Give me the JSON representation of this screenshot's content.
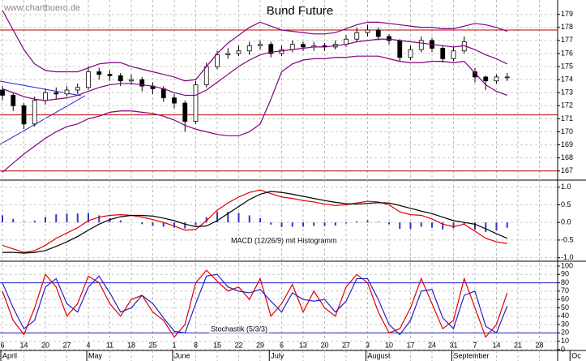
{
  "chart_data": {
    "title": "Bund Future",
    "watermark": "www.chartbuero.de",
    "categories": [
      "6",
      null,
      "14",
      null,
      "20",
      null,
      "27",
      null,
      "4",
      null,
      "11",
      null,
      "18",
      null,
      "25",
      null,
      "1",
      null,
      "8",
      null,
      "15",
      null,
      "22",
      null,
      "29",
      null,
      "6",
      null,
      "13",
      null,
      "20",
      null,
      "27",
      null,
      "3",
      null,
      "10",
      null,
      "17",
      null,
      "24",
      null,
      "31",
      null,
      "7",
      null,
      "14",
      null,
      "21",
      null,
      "28",
      null,
      null,
      null
    ],
    "months": [
      "April",
      null,
      null,
      null,
      null,
      null,
      null,
      null,
      "May",
      null,
      null,
      null,
      null,
      null,
      null,
      null,
      "June",
      null,
      null,
      null,
      null,
      null,
      null,
      null,
      null,
      "July",
      null,
      null,
      null,
      null,
      null,
      null,
      null,
      null,
      "August",
      null,
      null,
      null,
      null,
      null,
      null,
      null,
      "September",
      null,
      null,
      null,
      null,
      null,
      null,
      null,
      null,
      null,
      null,
      "Oc"
    ],
    "grid": true,
    "panels": [
      {
        "type": "candlestick",
        "open": [
          173.2,
          172.8,
          172.0,
          170.6,
          172.4,
          173.0,
          172.9,
          173.2,
          173.4,
          174.6,
          174.4,
          174.3,
          173.9,
          174.0,
          173.5,
          173.3,
          172.6,
          172.2,
          170.8,
          173.6,
          175.0,
          175.9,
          176.0,
          176.2,
          176.6,
          176.7,
          176.0,
          176.3,
          176.7,
          176.5,
          176.6,
          176.5,
          176.7,
          177.1,
          177.6,
          177.8,
          177.3,
          177.0,
          175.7,
          176.3,
          177.0,
          176.4,
          175.6,
          176.2,
          174.6,
          174.2,
          173.9,
          174.2,
          null,
          null,
          null,
          null,
          null,
          null
        ],
        "high": [
          173.5,
          173.0,
          172.2,
          172.7,
          173.3,
          173.4,
          173.5,
          173.7,
          175.0,
          174.9,
          174.7,
          174.5,
          174.4,
          174.2,
          173.8,
          173.5,
          172.9,
          172.4,
          173.9,
          175.3,
          176.2,
          176.4,
          176.6,
          176.9,
          177.0,
          176.9,
          176.6,
          177.0,
          176.9,
          176.9,
          176.8,
          177.0,
          177.4,
          178.0,
          178.2,
          178.0,
          177.5,
          177.1,
          176.6,
          177.3,
          177.2,
          176.6,
          176.5,
          177.3,
          174.9,
          174.3,
          174.4,
          174.5,
          null,
          null,
          null,
          null,
          null,
          null
        ],
        "low": [
          172.4,
          171.6,
          170.2,
          170.4,
          172.1,
          172.5,
          172.7,
          172.9,
          173.2,
          174.0,
          173.9,
          173.5,
          173.6,
          173.1,
          172.9,
          172.3,
          171.8,
          170.0,
          170.6,
          173.4,
          174.8,
          175.6,
          175.8,
          175.9,
          176.3,
          175.7,
          175.8,
          176.1,
          176.2,
          176.2,
          176.2,
          176.3,
          176.5,
          176.9,
          177.3,
          177.0,
          176.7,
          175.4,
          175.5,
          176.1,
          176.1,
          175.3,
          175.4,
          176.0,
          173.8,
          173.2,
          173.7,
          173.9,
          null,
          null,
          null,
          null,
          null,
          null
        ],
        "close": [
          172.8,
          172.0,
          170.6,
          172.4,
          173.0,
          172.9,
          173.2,
          173.4,
          174.6,
          174.4,
          174.3,
          173.9,
          174.0,
          173.5,
          173.3,
          172.6,
          172.2,
          170.8,
          173.6,
          175.0,
          175.9,
          176.0,
          176.2,
          176.6,
          176.7,
          176.0,
          176.3,
          176.7,
          176.5,
          176.6,
          176.5,
          176.7,
          177.1,
          177.6,
          177.8,
          177.3,
          177.0,
          175.7,
          176.3,
          177.0,
          176.4,
          175.6,
          176.2,
          176.9,
          174.2,
          173.9,
          174.2,
          174.2,
          null,
          null,
          null,
          null,
          null,
          null
        ],
        "series": [
          {
            "color": "#800080",
            "values": [
              179.3,
              177.8,
              176.3,
              175.2,
              174.7,
              174.6,
              174.6,
              174.6,
              174.9,
              175.2,
              175.3,
              175.3,
              175.0,
              174.8,
              174.6,
              174.4,
              174.2,
              173.9,
              174.0,
              175.0,
              176.0,
              176.8,
              177.4,
              178.0,
              178.4,
              178.1,
              177.8,
              177.7,
              177.6,
              177.5,
              177.5,
              177.6,
              177.9,
              178.2,
              178.4,
              178.4,
              178.3,
              178.2,
              178.1,
              178.0,
              178.0,
              177.9,
              177.9,
              178.1,
              178.3,
              178.2,
              178.0,
              177.7,
              null,
              null,
              null,
              null,
              null,
              null
            ]
          },
          {
            "color": "#800080",
            "values": [
              173.3,
              173.0,
              172.7,
              172.5,
              172.4,
              172.5,
              172.6,
              172.8,
              173.1,
              173.4,
              173.6,
              173.7,
              173.7,
              173.6,
              173.5,
              173.3,
              173.0,
              172.8,
              172.8,
              173.2,
              173.8,
              174.4,
              175.0,
              175.5,
              175.9,
              176.1,
              176.2,
              176.3,
              176.4,
              176.5,
              176.5,
              176.6,
              176.7,
              176.9,
              177.0,
              177.1,
              177.1,
              177.0,
              176.9,
              176.8,
              176.7,
              176.6,
              176.5,
              176.6,
              176.3,
              175.9,
              175.6,
              175.2,
              null,
              null,
              null,
              null,
              null,
              null
            ]
          },
          {
            "color": "#800080",
            "values": [
              166.9,
              167.6,
              168.3,
              168.9,
              169.5,
              170.0,
              170.4,
              170.6,
              171.0,
              171.2,
              171.5,
              171.6,
              171.6,
              171.5,
              171.4,
              171.2,
              170.9,
              170.5,
              170.2,
              170.0,
              169.8,
              169.7,
              169.7,
              170.0,
              170.6,
              172.5,
              174.6,
              175.2,
              175.5,
              175.6,
              175.6,
              175.7,
              175.7,
              175.8,
              175.8,
              175.8,
              175.6,
              175.4,
              175.3,
              175.3,
              175.4,
              175.4,
              175.3,
              175.4,
              174.5,
              173.6,
              173.1,
              172.8,
              null,
              null,
              null,
              null,
              null,
              null
            ]
          }
        ],
        "levels": [
          177.8,
          171.3,
          167.0
        ],
        "level_color": "#c00000",
        "ylim": [
          166.3,
          180.1
        ],
        "yticks": [
          167,
          168,
          169,
          170,
          171,
          172,
          173,
          174,
          175,
          176,
          177,
          178,
          179
        ]
      },
      {
        "type": "line",
        "label": "MACD (12/26/9) mit Histogramm",
        "series": [
          {
            "type": "bar",
            "color": "#3333cc",
            "values": [
              0.2,
              0.1,
              0.02,
              0.05,
              0.15,
              0.23,
              0.25,
              0.25,
              0.27,
              0.2,
              0.12,
              0.06,
              0.0,
              -0.05,
              -0.1,
              -0.12,
              -0.15,
              -0.17,
              -0.08,
              0.15,
              0.3,
              0.3,
              0.27,
              0.2,
              0.12,
              -0.06,
              -0.13,
              -0.12,
              -0.12,
              -0.1,
              -0.1,
              -0.09,
              -0.03,
              0.03,
              0.06,
              0.02,
              -0.05,
              -0.18,
              -0.18,
              -0.12,
              -0.15,
              -0.2,
              -0.17,
              -0.05,
              -0.2,
              -0.27,
              -0.23,
              -0.15,
              null,
              null,
              null,
              null,
              null,
              null
            ]
          },
          {
            "color": "#e00000",
            "values": [
              -0.65,
              -0.75,
              -0.85,
              -0.8,
              -0.65,
              -0.45,
              -0.3,
              -0.15,
              0.05,
              0.15,
              0.2,
              0.22,
              0.2,
              0.15,
              0.08,
              0.0,
              -0.1,
              -0.22,
              -0.2,
              0.05,
              0.35,
              0.55,
              0.72,
              0.85,
              0.92,
              0.82,
              0.72,
              0.68,
              0.62,
              0.58,
              0.52,
              0.48,
              0.5,
              0.55,
              0.6,
              0.58,
              0.5,
              0.3,
              0.22,
              0.2,
              0.1,
              -0.05,
              -0.12,
              -0.05,
              -0.25,
              -0.45,
              -0.55,
              -0.6,
              null,
              null,
              null,
              null,
              null,
              null
            ]
          },
          {
            "color": "#000000",
            "values": [
              -0.85,
              -0.85,
              -0.87,
              -0.85,
              -0.8,
              -0.68,
              -0.55,
              -0.4,
              -0.22,
              -0.05,
              0.08,
              0.16,
              0.2,
              0.2,
              0.18,
              0.12,
              0.05,
              -0.05,
              -0.12,
              -0.1,
              0.05,
              0.25,
              0.45,
              0.65,
              0.8,
              0.88,
              0.85,
              0.8,
              0.74,
              0.68,
              0.62,
              0.57,
              0.53,
              0.52,
              0.54,
              0.56,
              0.55,
              0.48,
              0.4,
              0.32,
              0.25,
              0.15,
              0.05,
              0.0,
              -0.05,
              -0.18,
              -0.32,
              -0.45,
              null,
              null,
              null,
              null,
              null,
              null
            ]
          }
        ],
        "ylim": [
          -1.1,
          1.2
        ],
        "yticks": [
          {
            "value": 1,
            "label": "1.0"
          },
          0.5,
          {
            "value": 0,
            "label": "0.0"
          },
          -0.5,
          {
            "value": -1,
            "label": "-1.0"
          }
        ]
      },
      {
        "type": "line",
        "label": "Stochastik (5/3/3)",
        "series": [
          {
            "color": "#e00000",
            "values": [
              70,
              35,
              18,
              50,
              90,
              75,
              40,
              55,
              88,
              80,
              55,
              40,
              60,
              65,
              45,
              35,
              15,
              30,
              80,
              95,
              82,
              70,
              75,
              60,
              85,
              40,
              55,
              78,
              45,
              70,
              50,
              40,
              75,
              90,
              80,
              45,
              20,
              25,
              50,
              85,
              55,
              25,
              35,
              85,
              50,
              15,
              30,
              68,
              null,
              null,
              null,
              null,
              null,
              null
            ]
          },
          {
            "color": "#2222cc",
            "values": [
              80,
              50,
              25,
              35,
              75,
              85,
              55,
              45,
              75,
              88,
              68,
              45,
              50,
              65,
              55,
              38,
              22,
              20,
              55,
              88,
              90,
              75,
              70,
              68,
              72,
              58,
              45,
              68,
              60,
              58,
              60,
              45,
              58,
              85,
              85,
              60,
              30,
              18,
              35,
              70,
              72,
              38,
              25,
              65,
              70,
              28,
              20,
              52,
              null,
              null,
              null,
              null,
              null,
              null
            ]
          }
        ],
        "levels": [
          80,
          20
        ],
        "level_color": "#2222cc",
        "ylim": [
          -1,
          105.8
        ],
        "yticks": [
          100,
          90,
          80,
          70,
          60,
          50,
          40,
          30,
          20,
          10,
          0
        ]
      }
    ]
  }
}
